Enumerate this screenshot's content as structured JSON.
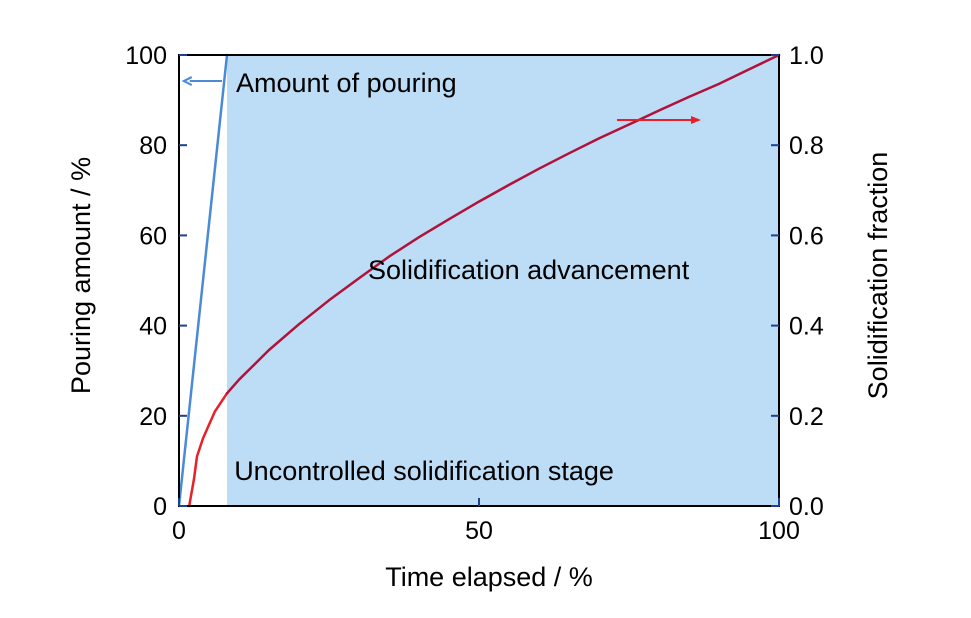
{
  "chart_data": {
    "type": "line",
    "xlabel": "Time elapsed / %",
    "ylabel_left": "Pouring amount / %",
    "ylabel_right": "Solidification fraction",
    "xlim": [
      0,
      100
    ],
    "ylim_left": [
      0,
      100
    ],
    "ylim_right": [
      0,
      1.0
    ],
    "x_ticks": [
      0,
      50,
      100
    ],
    "x_tick_labels": [
      "0",
      "50",
      "100"
    ],
    "y_left_ticks": [
      0,
      20,
      40,
      60,
      80,
      100
    ],
    "y_left_tick_labels": [
      "0",
      "20",
      "40",
      "60",
      "80",
      "100"
    ],
    "y_right_ticks": [
      0.0,
      0.2,
      0.4,
      0.6,
      0.8,
      1.0
    ],
    "y_right_tick_labels": [
      "0.0",
      "0.2",
      "0.4",
      "0.6",
      "0.8",
      "1.0"
    ],
    "grid": false,
    "shaded_region": {
      "x_start": 8,
      "x_end": 100,
      "color": "#bcddf5"
    },
    "series": [
      {
        "axis": "left",
        "color": "#4a8ad6",
        "x": [
          0,
          8
        ],
        "y": [
          0,
          100
        ]
      },
      {
        "axis": "right",
        "color": "#e8202a",
        "x": [
          1.7,
          2.5,
          3,
          4,
          5,
          6,
          7,
          8
        ],
        "y": [
          0.0,
          0.06,
          0.11,
          0.15,
          0.18,
          0.21,
          0.23,
          0.25
        ]
      },
      {
        "axis": "right",
        "color": "#b0123c",
        "x": [
          8,
          10,
          15,
          20,
          25,
          30,
          35,
          40,
          45,
          50,
          55,
          60,
          65,
          70,
          75,
          80,
          85,
          90,
          95,
          100
        ],
        "y": [
          0.25,
          0.28,
          0.346,
          0.403,
          0.456,
          0.505,
          0.553,
          0.596,
          0.636,
          0.675,
          0.712,
          0.748,
          0.782,
          0.815,
          0.846,
          0.877,
          0.907,
          0.936,
          0.968,
          1.0
        ]
      }
    ],
    "annotations": [
      {
        "text": "Amount of pouring",
        "x": 9.5,
        "y_left": 94,
        "arrow": "left",
        "arrow_color": "#4a8ad6"
      },
      {
        "text": "Solidification advancement",
        "x": 31.5,
        "y_left": 52.5
      },
      {
        "text": "Uncontrolled solidification stage",
        "x": 9.2,
        "y_left": 8
      },
      {
        "arrow": "right",
        "arrow_color": "#e8202a",
        "x_from": 73,
        "x_to": 87,
        "y_right": 0.856
      }
    ]
  }
}
